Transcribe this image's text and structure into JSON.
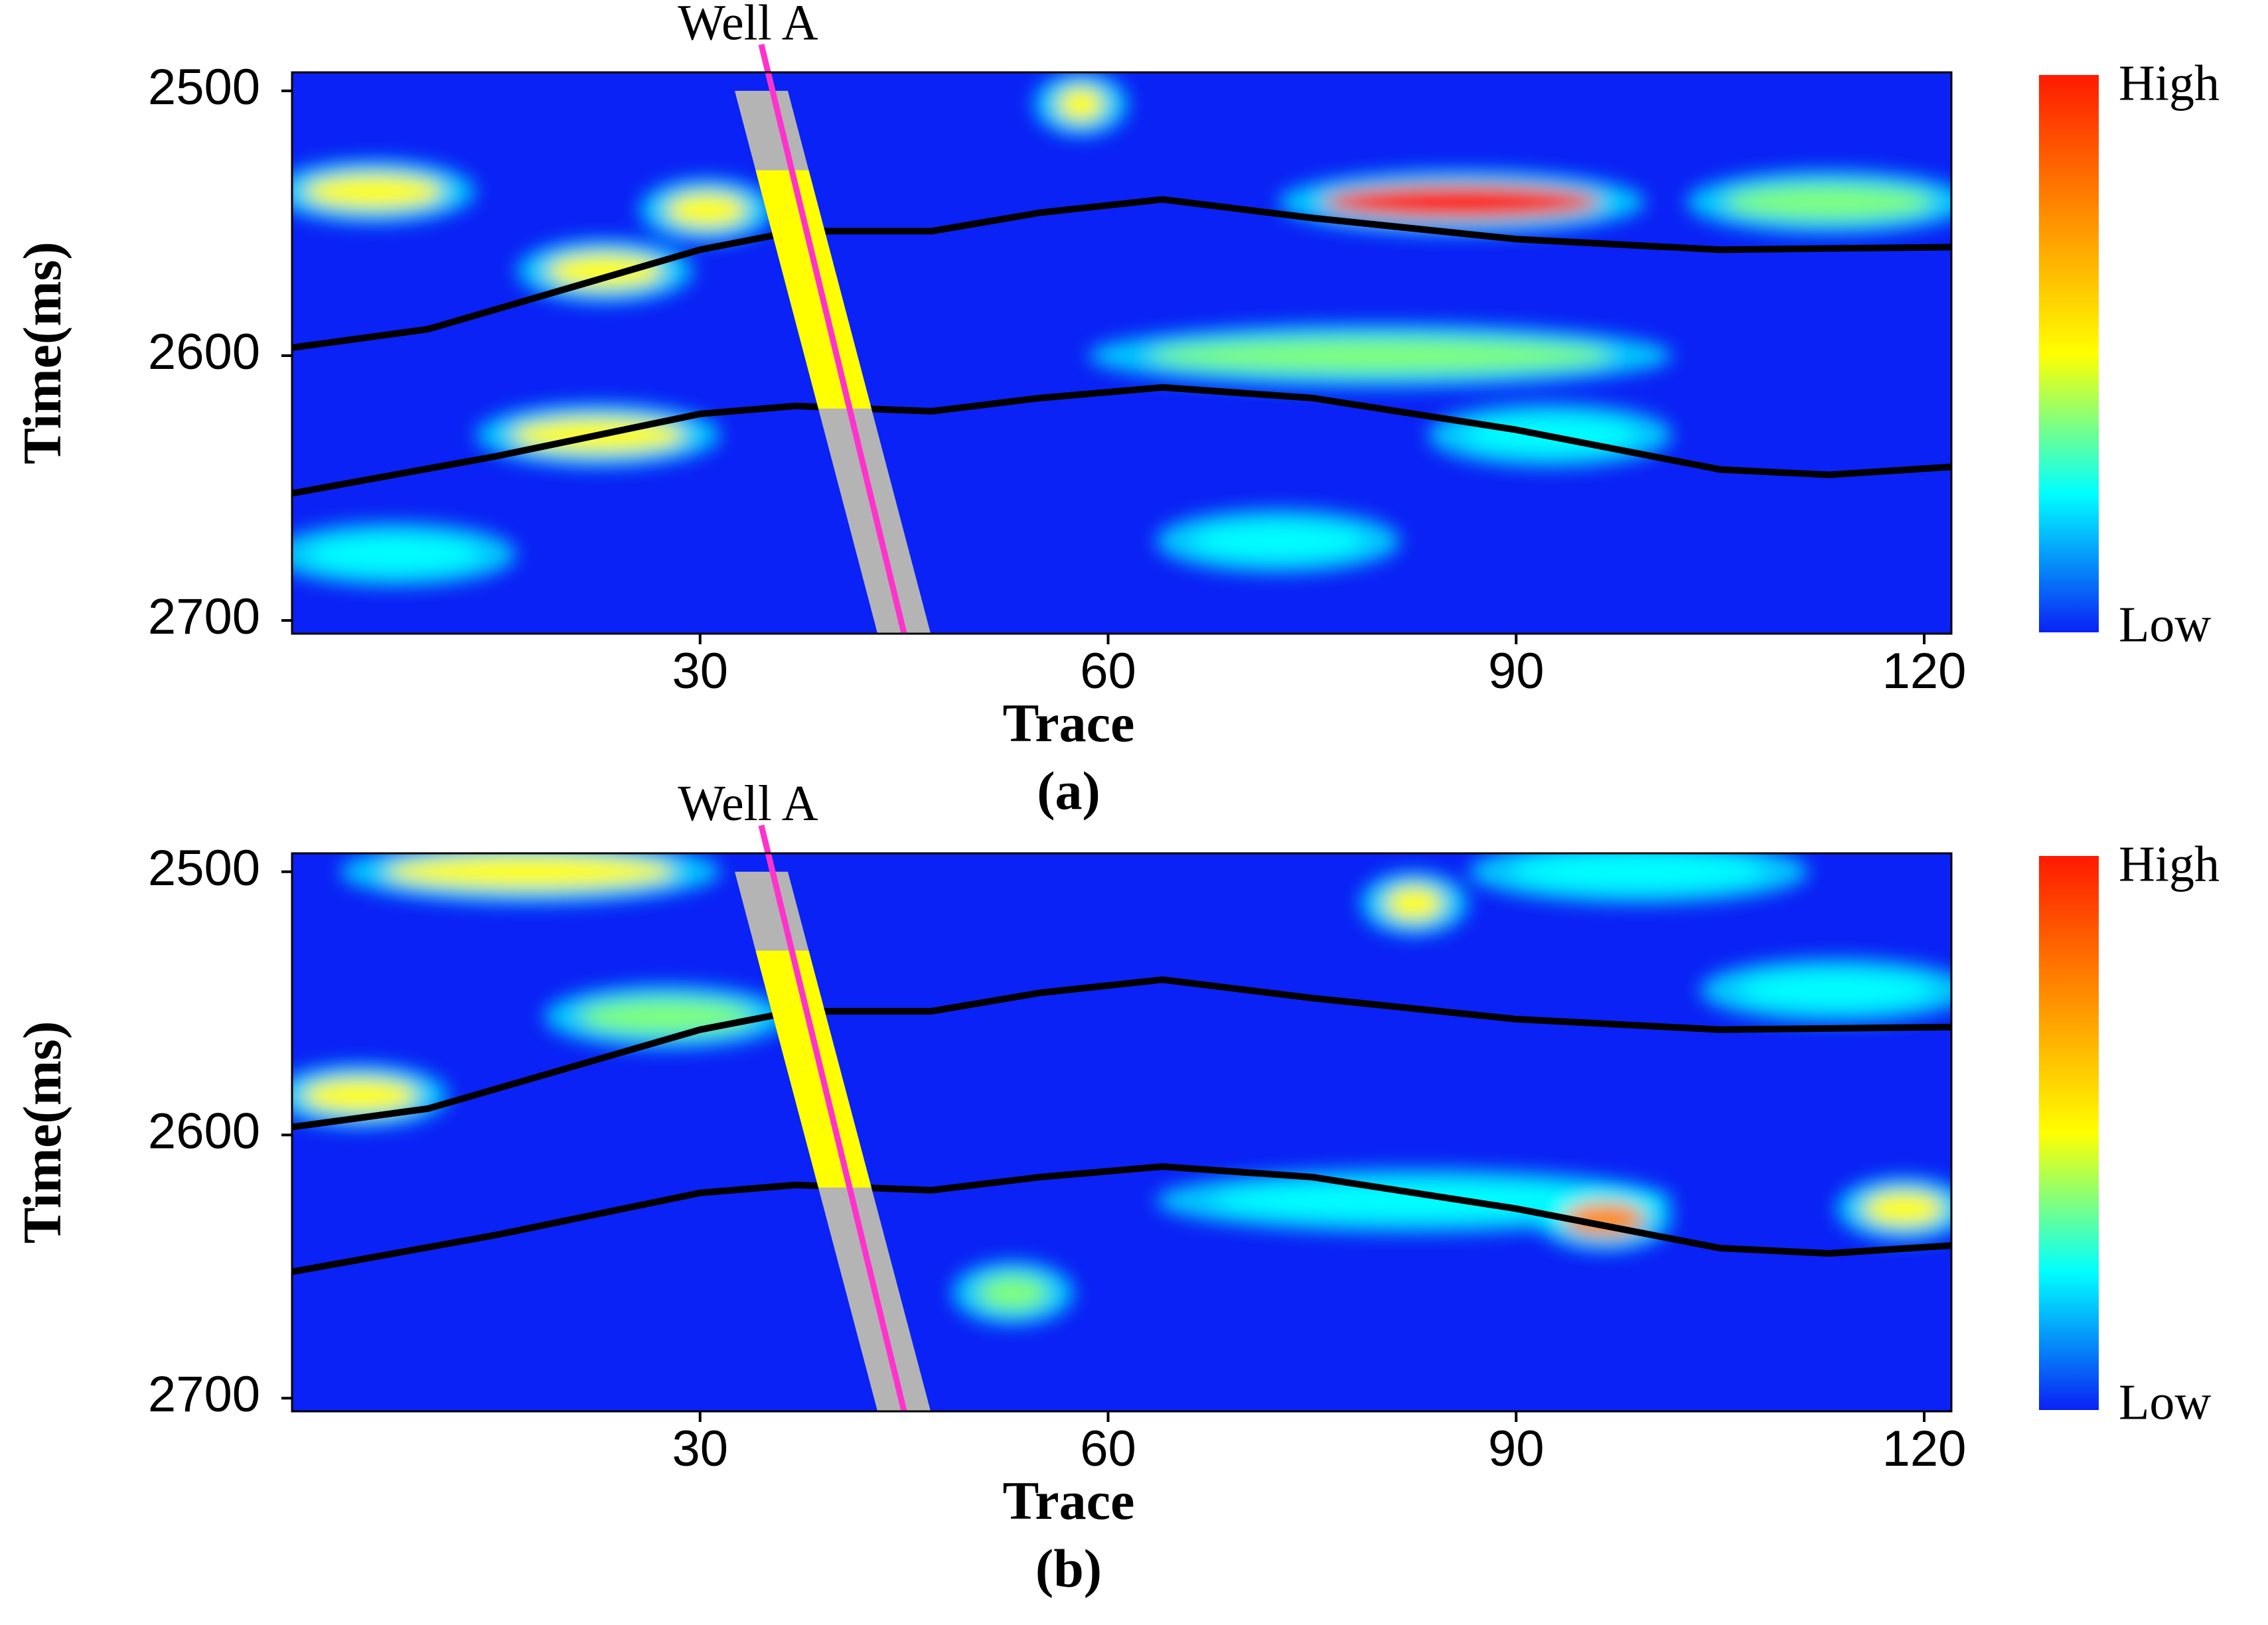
{
  "chart_data": [
    {
      "type": "heatmap",
      "caption": "(a)",
      "xlabel": "Trace",
      "ylabel": "Time(ms)",
      "xlim": [
        0,
        122
      ],
      "ylim": [
        2493,
        2705
      ],
      "y_inverted": true,
      "xticks": [
        30,
        60,
        90,
        120
      ],
      "yticks": [
        2500,
        2600,
        2700
      ],
      "colormap": [
        "#ff1a00",
        "#ff8c00",
        "#ffff00",
        "#00ffff",
        "#0a22f5"
      ],
      "colorbar_labels": [
        "High",
        "Low"
      ],
      "well": {
        "name": "Well A",
        "traces": [
          34.5,
          45
        ],
        "times": [
          2500,
          2705
        ],
        "highlight_times": [
          2530,
          2620
        ],
        "color": "#ff33cc"
      },
      "horizons": [
        {
          "x": [
            0,
            10,
            20,
            30,
            37,
            47,
            55,
            64,
            75,
            90,
            105,
            122
          ],
          "time": [
            2597,
            2590,
            2575,
            2560,
            2553,
            2553,
            2546,
            2541,
            2548,
            2556,
            2560,
            2559
          ]
        },
        {
          "x": [
            0,
            15,
            30,
            37,
            47,
            55,
            64,
            75,
            90,
            105,
            113,
            122
          ],
          "time": [
            2652,
            2638,
            2622,
            2619,
            2621,
            2616,
            2612,
            2616,
            2628,
            2643,
            2645,
            2642
          ]
        }
      ],
      "anomalies": [
        {
          "traces": [
            0,
            12
          ],
          "time": 2538,
          "color": "#ffff00"
        },
        {
          "traces": [
            18,
            28
          ],
          "time": 2568,
          "color": "#ffff00"
        },
        {
          "traces": [
            74,
            98
          ],
          "time": 2542,
          "color": "#ff1a00"
        },
        {
          "traces": [
            60,
            100
          ],
          "time": 2600,
          "color": "#7fff7f"
        },
        {
          "traces": [
            15,
            30
          ],
          "time": 2630,
          "color": "#ffff00"
        },
        {
          "traces": [
            85,
            100
          ],
          "time": 2630,
          "color": "#00ffff"
        },
        {
          "traces": [
            104,
            122
          ],
          "time": 2542,
          "color": "#7fff7f"
        },
        {
          "traces": [
            56,
            60
          ],
          "time": 2505,
          "color": "#ffff00"
        },
        {
          "traces": [
            0,
            15
          ],
          "time": 2675,
          "color": "#00ffff"
        },
        {
          "traces": [
            65,
            80
          ],
          "time": 2670,
          "color": "#00ffff"
        },
        {
          "traces": [
            27,
            34
          ],
          "time": 2545,
          "color": "#ffff00"
        }
      ]
    },
    {
      "type": "heatmap",
      "caption": "(b)",
      "xlabel": "Trace",
      "ylabel": "Time(ms)",
      "xlim": [
        0,
        122
      ],
      "ylim": [
        2493,
        2705
      ],
      "y_inverted": true,
      "xticks": [
        30,
        60,
        90,
        120
      ],
      "yticks": [
        2500,
        2600,
        2700
      ],
      "colormap": [
        "#ff1a00",
        "#ff8c00",
        "#ffff00",
        "#00ffff",
        "#0a22f5"
      ],
      "colorbar_labels": [
        "High",
        "Low"
      ],
      "well": {
        "name": "Well A",
        "traces": [
          34.5,
          45
        ],
        "times": [
          2500,
          2705
        ],
        "highlight_times": [
          2530,
          2620
        ],
        "color": "#ff33cc"
      },
      "horizons": [
        {
          "x": [
            0,
            10,
            20,
            30,
            37,
            47,
            55,
            64,
            75,
            90,
            105,
            122
          ],
          "time": [
            2597,
            2590,
            2575,
            2560,
            2553,
            2553,
            2546,
            2541,
            2548,
            2556,
            2560,
            2559
          ]
        },
        {
          "x": [
            0,
            15,
            30,
            37,
            47,
            55,
            64,
            75,
            90,
            105,
            113,
            122
          ],
          "time": [
            2652,
            2638,
            2622,
            2619,
            2621,
            2616,
            2612,
            2616,
            2628,
            2643,
            2645,
            2642
          ]
        }
      ],
      "anomalies": [
        {
          "traces": [
            5,
            30
          ],
          "time": 2500,
          "color": "#ffff00"
        },
        {
          "traces": [
            0,
            10
          ],
          "time": 2585,
          "color": "#ffff00"
        },
        {
          "traces": [
            20,
            35
          ],
          "time": 2555,
          "color": "#7fff7f"
        },
        {
          "traces": [
            65,
            100
          ],
          "time": 2625,
          "color": "#00ffff"
        },
        {
          "traces": [
            93,
            100
          ],
          "time": 2632,
          "color": "#ff8c00"
        },
        {
          "traces": [
            115,
            122
          ],
          "time": 2628,
          "color": "#ffff00"
        },
        {
          "traces": [
            50,
            56
          ],
          "time": 2660,
          "color": "#7fff7f"
        },
        {
          "traces": [
            80,
            85
          ],
          "time": 2512,
          "color": "#ffff00"
        },
        {
          "traces": [
            105,
            122
          ],
          "time": 2545,
          "color": "#00ffff"
        },
        {
          "traces": [
            88,
            110
          ],
          "time": 2500,
          "color": "#00ffff"
        }
      ]
    }
  ]
}
